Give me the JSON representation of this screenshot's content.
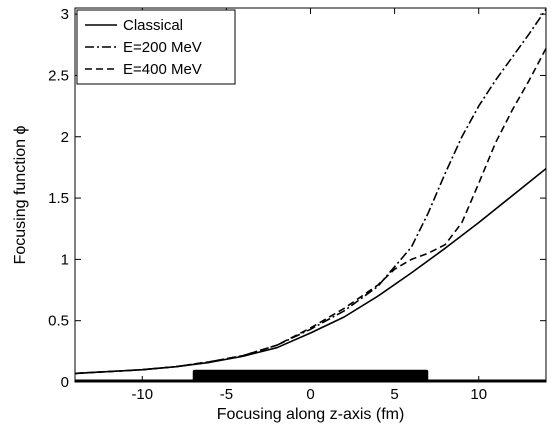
{
  "chart_data": {
    "type": "line",
    "title": "",
    "xlabel": "Focusing along z-axis (fm)",
    "ylabel": "Focusing function ϕ",
    "xlim": [
      -14,
      14
    ],
    "ylim": [
      0,
      3.05
    ],
    "xticks": [
      -10,
      -5,
      0,
      5,
      10
    ],
    "xtick_labels": [
      "-10",
      "-5",
      "0",
      "5",
      "10"
    ],
    "yticks": [
      0,
      0.5,
      1,
      1.5,
      2,
      2.5,
      3
    ],
    "ytick_labels": [
      "0",
      "0.5",
      "1",
      "1.5",
      "2",
      "2.5",
      "3"
    ],
    "grid": false,
    "legend_position": "top-left",
    "series": [
      {
        "name": "Classical",
        "style": "solid",
        "color": "#000000",
        "x": [
          -14,
          -12,
          -10,
          -8,
          -6,
          -4,
          -2,
          0,
          2,
          4,
          6,
          8,
          10,
          12,
          14
        ],
        "y": [
          0.07,
          0.085,
          0.1,
          0.125,
          0.16,
          0.21,
          0.28,
          0.4,
          0.53,
          0.7,
          0.89,
          1.09,
          1.3,
          1.52,
          1.74
        ]
      },
      {
        "name": "E=200 MeV",
        "style": "dashdot",
        "color": "#000000",
        "x": [
          -14,
          -12,
          -10,
          -8,
          -6,
          -4,
          -2,
          0,
          2,
          4,
          6,
          7,
          8,
          9,
          10,
          11,
          12,
          13,
          14
        ],
        "y": [
          0.07,
          0.085,
          0.1,
          0.125,
          0.165,
          0.215,
          0.3,
          0.43,
          0.58,
          0.78,
          1.1,
          1.38,
          1.7,
          2.0,
          2.25,
          2.46,
          2.65,
          2.84,
          3.04
        ]
      },
      {
        "name": "E=400 MeV",
        "style": "dashed",
        "color": "#000000",
        "x": [
          -14,
          -12,
          -10,
          -8,
          -6,
          -4,
          -2,
          0,
          2,
          4,
          5,
          6,
          7,
          8,
          9,
          10,
          11,
          12,
          13,
          14
        ],
        "y": [
          0.07,
          0.085,
          0.1,
          0.125,
          0.165,
          0.215,
          0.3,
          0.44,
          0.6,
          0.79,
          0.92,
          1.0,
          1.05,
          1.12,
          1.3,
          1.62,
          1.95,
          2.22,
          2.46,
          2.72
        ]
      }
    ],
    "bar": {
      "x_start": -7,
      "x_end": 7,
      "height": 0.1,
      "color": "#000000"
    }
  }
}
